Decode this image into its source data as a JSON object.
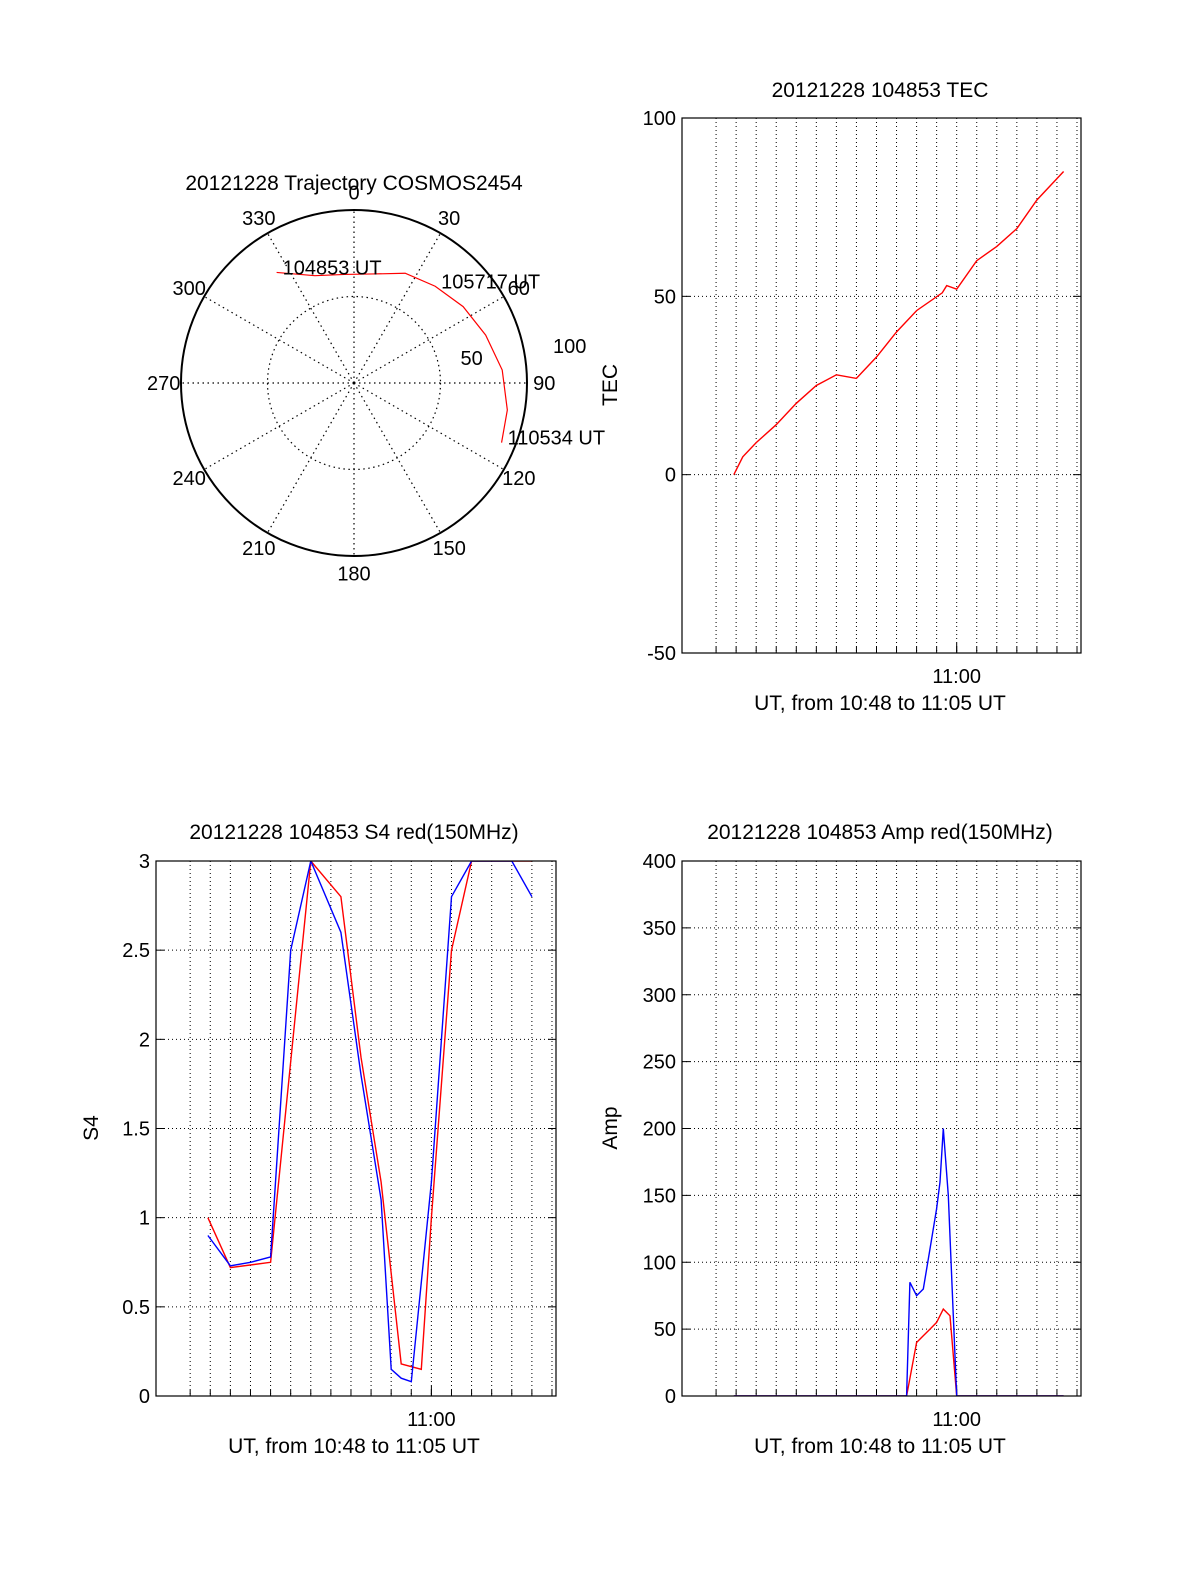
{
  "chart_data": [
    {
      "type": "polar",
      "title": "20121228 Trajectory COSMOS2454",
      "angle_labels": [
        "0",
        "30",
        "60",
        "90",
        "120",
        "150",
        "180",
        "210",
        "240",
        "270",
        "300",
        "330"
      ],
      "radius_labels": [
        "50",
        "100"
      ],
      "radius_range": [
        0,
        100
      ],
      "grid": true,
      "series": [
        {
          "color": "#ff0000",
          "points": [
            {
              "azimuth": 325,
              "zenith": 78,
              "time": "104853 UT"
            },
            {
              "azimuth": 340,
              "zenith": 66
            },
            {
              "azimuth": 355,
              "zenith": 63
            },
            {
              "azimuth": 10,
              "zenith": 64
            },
            {
              "azimuth": 25,
              "zenith": 70
            },
            {
              "azimuth": 40,
              "zenith": 73,
              "time": "105717 UT"
            },
            {
              "azimuth": 55,
              "zenith": 77
            },
            {
              "azimuth": 70,
              "zenith": 81
            },
            {
              "azimuth": 85,
              "zenith": 86
            },
            {
              "azimuth": 100,
              "zenith": 90
            },
            {
              "azimuth": 112,
              "zenith": 92,
              "time": "110534 UT"
            }
          ]
        }
      ],
      "annotations": [
        "104853 UT",
        "105717 UT",
        "110534 UT"
      ]
    },
    {
      "type": "line",
      "title": "20121228 104853 TEC",
      "xlabel": "UT, from 10:48 to 11:05 UT",
      "ylabel": "TEC",
      "x_tick_labels": [
        "11:00"
      ],
      "xlim": [
        "10:46:18",
        "11:06:12"
      ],
      "ylim": [
        -50,
        100
      ],
      "y_ticks": [
        -50,
        0,
        50,
        100
      ],
      "grid": true,
      "series": [
        {
          "color": "#ff0000",
          "x": [
            "10:48:53",
            "10:49:20",
            "10:50:00",
            "10:51:00",
            "10:52:00",
            "10:53:00",
            "10:54:00",
            "10:55:00",
            "10:56:00",
            "10:57:00",
            "10:58:00",
            "10:59:17",
            "10:59:30",
            "11:00:00",
            "11:01:00",
            "11:02:00",
            "11:03:00",
            "11:04:00",
            "11:05:20"
          ],
          "y": [
            0,
            5,
            9,
            14,
            20,
            25,
            28,
            27,
            33,
            40,
            46,
            51,
            53,
            52,
            60,
            64,
            69,
            77,
            85
          ]
        }
      ]
    },
    {
      "type": "line",
      "title": "20121228 104853 S4 red(150MHz)",
      "xlabel": "UT, from 10:48 to 11:05 UT",
      "ylabel": "S4",
      "x_tick_labels": [
        "11:00"
      ],
      "xlim": [
        "10:46:18",
        "11:06:12"
      ],
      "ylim": [
        0,
        3
      ],
      "y_ticks": [
        0,
        0.5,
        1,
        1.5,
        2,
        2.5,
        3
      ],
      "grid": true,
      "series": [
        {
          "color": "#ff0000",
          "x": [
            "10:48:53",
            "10:50:00",
            "10:52:00",
            "10:54:00",
            "10:55:30",
            "10:56:30",
            "10:57:30",
            "10:58:30",
            "10:59:30",
            "11:00:00",
            "11:01:00",
            "11:02:00",
            "11:03:00",
            "11:04:00",
            "11:05:00"
          ],
          "y": [
            1.0,
            0.72,
            0.75,
            3.0,
            2.8,
            1.9,
            1.2,
            0.18,
            0.15,
            1.0,
            2.5,
            3.0,
            3.0,
            3.0,
            3.0
          ]
        },
        {
          "color": "#0000ff",
          "x": [
            "10:48:53",
            "10:50:00",
            "10:51:00",
            "10:52:00",
            "10:53:00",
            "10:54:00",
            "10:55:30",
            "10:56:30",
            "10:57:30",
            "10:58:00",
            "10:58:30",
            "10:59:00",
            "11:00:00",
            "11:01:00",
            "11:02:00",
            "11:03:00",
            "11:04:00",
            "11:05:00"
          ],
          "y": [
            0.9,
            0.73,
            0.75,
            0.78,
            2.5,
            3.0,
            2.6,
            1.8,
            1.1,
            0.15,
            0.1,
            0.08,
            1.2,
            2.8,
            3.0,
            3.0,
            3.0,
            2.8
          ]
        }
      ]
    },
    {
      "type": "line",
      "title": "20121228 104853 Amp red(150MHz)",
      "xlabel": "UT, from 10:48 to 11:05 UT",
      "ylabel": "Amp",
      "x_tick_labels": [
        "11:00"
      ],
      "xlim": [
        "10:46:18",
        "11:06:12"
      ],
      "ylim": [
        0,
        400
      ],
      "y_ticks": [
        0,
        50,
        100,
        150,
        200,
        250,
        300,
        350,
        400
      ],
      "grid": true,
      "series": [
        {
          "color": "#ff0000",
          "x": [
            "10:48:53",
            "10:56:00",
            "10:57:30",
            "10:57:45",
            "10:58:00",
            "10:58:20",
            "10:58:40",
            "10:59:00",
            "10:59:20",
            "10:59:40",
            "11:00:00",
            "11:01:00",
            "11:05:20"
          ],
          "y": [
            0,
            0,
            0,
            20,
            40,
            45,
            50,
            55,
            65,
            60,
            0,
            0,
            0
          ]
        },
        {
          "color": "#0000ff",
          "x": [
            "10:48:53",
            "10:56:00",
            "10:57:30",
            "10:57:40",
            "10:58:00",
            "10:58:20",
            "10:58:40",
            "10:59:00",
            "10:59:10",
            "10:59:20",
            "10:59:35",
            "10:59:50",
            "11:00:00",
            "11:00:40",
            "11:05:20"
          ],
          "y": [
            0,
            0,
            0,
            85,
            75,
            80,
            110,
            140,
            160,
            200,
            150,
            60,
            0,
            0,
            0
          ]
        }
      ]
    }
  ]
}
